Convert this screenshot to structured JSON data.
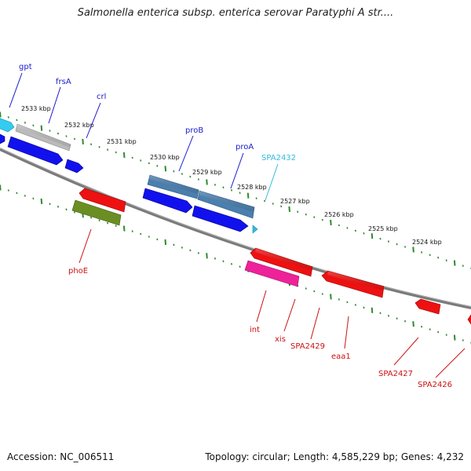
{
  "title": "Salmonella enterica subsp. enterica serovar Paratyphi A str....",
  "footer": {
    "accession": "Accession: NC_006511",
    "summary": "Topology: circular; Length: 4,585,229 bp; Genes: 4,232"
  },
  "colors": {
    "backbone": "#7a7a7a",
    "tick": "#2e8b2e",
    "label_forward": "#1a1acc",
    "label_reverse": "#cc1111",
    "label_highlight": "#33bbdd"
  },
  "kbp_labels": [
    "2533 kbp",
    "2532 kbp",
    "2531 kbp",
    "2530 kbp",
    "2529 kbp",
    "2528 kbp",
    "2527 kbp",
    "2526 kbp",
    "2525 kbp",
    "2524 kbp"
  ],
  "gene_labels": [
    {
      "id": "gpt",
      "text": "gpt",
      "color": "#1a1acc"
    },
    {
      "id": "frsA",
      "text": "frsA",
      "color": "#1a1acc"
    },
    {
      "id": "crl",
      "text": "crl",
      "color": "#1a1acc"
    },
    {
      "id": "proB",
      "text": "proB",
      "color": "#1a1acc"
    },
    {
      "id": "proA",
      "text": "proA",
      "color": "#1a1acc"
    },
    {
      "id": "SPA2432",
      "text": "SPA2432",
      "color": "#33bbdd"
    },
    {
      "id": "phoE",
      "text": "phoE",
      "color": "#cc1111"
    },
    {
      "id": "int",
      "text": "int",
      "color": "#cc1111"
    },
    {
      "id": "xis",
      "text": "xis",
      "color": "#cc1111"
    },
    {
      "id": "SPA2429",
      "text": "SPA2429",
      "color": "#cc1111"
    },
    {
      "id": "eaa1",
      "text": "eaa1",
      "color": "#cc1111"
    },
    {
      "id": "SPA2427",
      "text": "SPA2427",
      "color": "#cc1111"
    },
    {
      "id": "SPA2426",
      "text": "SPA2426",
      "color": "#cc1111"
    }
  ],
  "features": [
    {
      "id": "cyan-cds",
      "color": "#33ccee"
    },
    {
      "id": "gray-gene",
      "color": "#bbbbbb"
    },
    {
      "id": "blue-cds-1",
      "color": "#1111ee"
    },
    {
      "id": "blue-cds-2",
      "color": "#1111ee"
    },
    {
      "id": "blue-cds-left",
      "color": "#1111ee"
    },
    {
      "id": "proB-gene",
      "color": "#4a7fae"
    },
    {
      "id": "proA-gene",
      "color": "#4a7fae"
    },
    {
      "id": "proB-cds",
      "color": "#1111ee"
    },
    {
      "id": "proA-cds",
      "color": "#1111ee"
    },
    {
      "id": "SPA2432-mark",
      "color": "#33bbdd"
    },
    {
      "id": "phoE-red",
      "color": "#ee1111"
    },
    {
      "id": "phoE-olive",
      "color": "#6b8e23"
    },
    {
      "id": "int-red",
      "color": "#ee1111"
    },
    {
      "id": "xis-pink",
      "color": "#ee2299"
    },
    {
      "id": "eaa1-red",
      "color": "#ee1111"
    },
    {
      "id": "SPA2427-red",
      "color": "#ee1111"
    },
    {
      "id": "SPA2426-red",
      "color": "#ee1111"
    }
  ]
}
